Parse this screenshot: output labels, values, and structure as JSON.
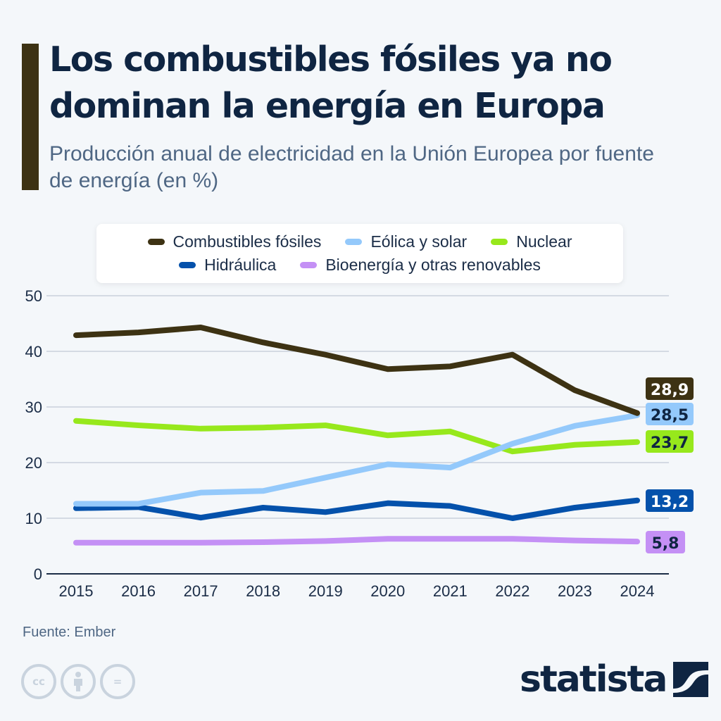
{
  "header": {
    "title": "Los combustibles fósiles ya no dominan la energía en Europa",
    "subtitle": "Producción anual de electricidad en la Unión Europea por fuente de energía (en %)"
  },
  "legend": [
    {
      "name": "Combustibles fósiles",
      "color": "#3d3213"
    },
    {
      "name": "Eólica y solar",
      "color": "#94c9fb"
    },
    {
      "name": "Nuclear",
      "color": "#97e81c"
    },
    {
      "name": "Hidráulica",
      "color": "#0451ab"
    },
    {
      "name": "Bioenergía y otras renovables",
      "color": "#c490f5"
    }
  ],
  "chart_data": {
    "type": "line",
    "title": "Los combustibles fósiles ya no dominan la energía en Europa",
    "subtitle": "Producción anual de electricidad en la Unión Europea por fuente de energía (en %)",
    "xlabel": "",
    "ylabel": "",
    "x": [
      "2015",
      "2016",
      "2017",
      "2018",
      "2019",
      "2020",
      "2021",
      "2022",
      "2023",
      "2024"
    ],
    "ylim": [
      0,
      50
    ],
    "yticks": [
      "0",
      "10",
      "20",
      "30",
      "40",
      "50"
    ],
    "grid": true,
    "legend_position": "top",
    "series": [
      {
        "name": "Combustibles fósiles",
        "color": "#3d3213",
        "label_color": "#ffffff",
        "end_label": "28,9",
        "values": [
          42.9,
          43.4,
          44.3,
          41.6,
          39.4,
          36.8,
          37.3,
          39.4,
          33.0,
          28.9
        ]
      },
      {
        "name": "Eólica y solar",
        "color": "#94c9fb",
        "label_color": "#0f2542",
        "end_label": "28,5",
        "values": [
          12.6,
          12.6,
          14.6,
          14.9,
          17.3,
          19.7,
          19.1,
          23.4,
          26.6,
          28.5
        ]
      },
      {
        "name": "Nuclear",
        "color": "#97e81c",
        "label_color": "#0f2542",
        "end_label": "23,7",
        "values": [
          27.5,
          26.7,
          26.1,
          26.3,
          26.7,
          24.9,
          25.6,
          22.0,
          23.2,
          23.7
        ]
      },
      {
        "name": "Hidráulica",
        "color": "#0451ab",
        "label_color": "#ffffff",
        "end_label": "13,2",
        "values": [
          11.8,
          12.0,
          10.1,
          11.9,
          11.1,
          12.7,
          12.2,
          10.0,
          11.9,
          13.2
        ]
      },
      {
        "name": "Bioenergía y otras renovables",
        "color": "#c490f5",
        "label_color": "#0f2542",
        "end_label": "5,8",
        "values": [
          5.6,
          5.6,
          5.6,
          5.7,
          5.9,
          6.3,
          6.3,
          6.3,
          6.0,
          5.8
        ]
      }
    ]
  },
  "footer": {
    "source": "Fuente: Ember",
    "brand": "statista",
    "license_icons": [
      "cc-icon",
      "attribution-icon",
      "no-derivatives-icon"
    ],
    "cc_text": "cc",
    "nd_text": "="
  }
}
